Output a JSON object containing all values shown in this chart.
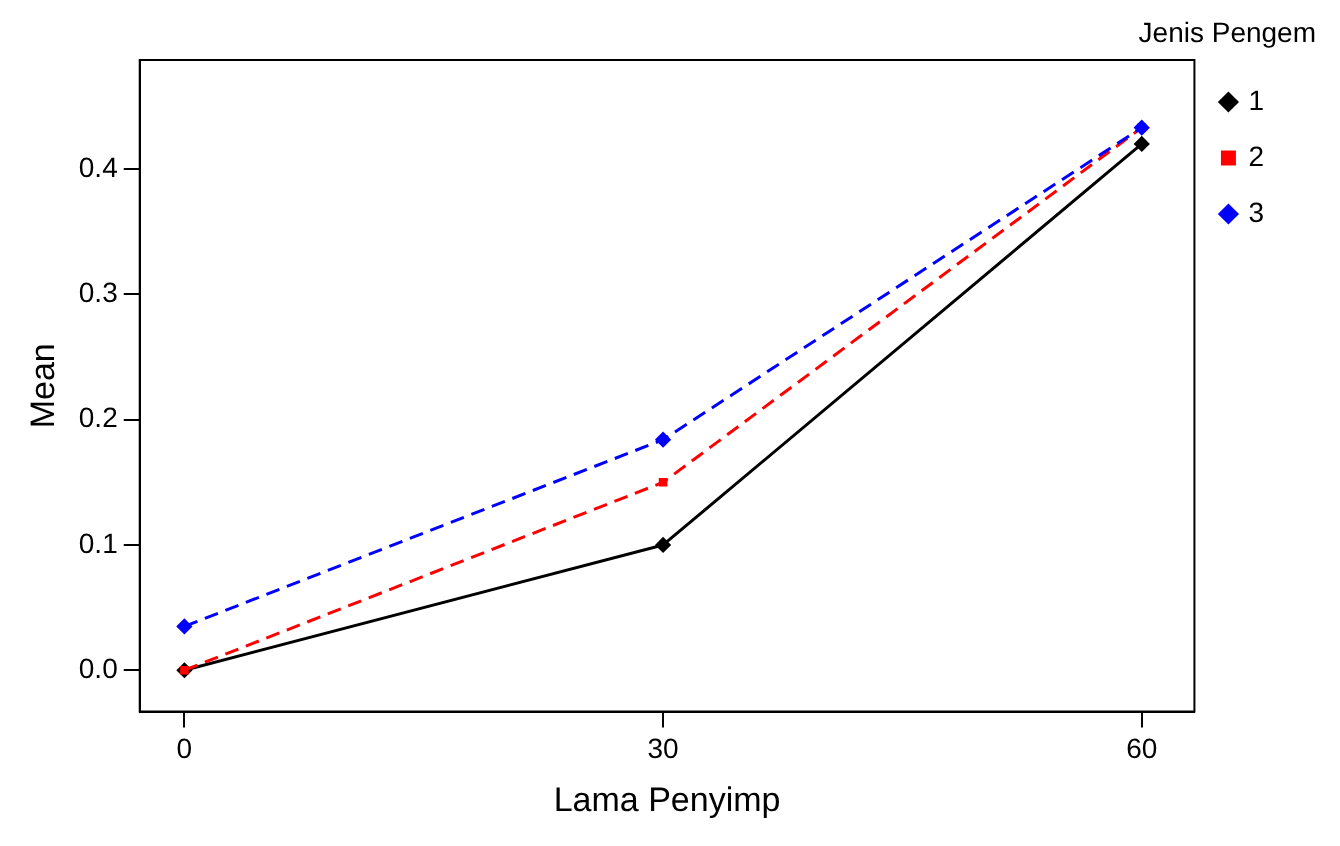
{
  "chart_data": {
    "type": "line",
    "xlabel": "Lama Penyimp",
    "ylabel": "Mean",
    "legend_title": "Jenis Pengem",
    "x": [
      0,
      30,
      60
    ],
    "series": [
      {
        "name": "1",
        "color": "#000000",
        "values": [
          0.0,
          0.1,
          0.42
        ],
        "marker": "diamond",
        "line_style": "solid"
      },
      {
        "name": "2",
        "color": "#ff0000",
        "values": [
          0.0,
          0.15,
          0.433
        ],
        "marker": "square",
        "line_style": "dashed"
      },
      {
        "name": "3",
        "color": "#0000ff",
        "values": [
          0.035,
          0.184,
          0.433
        ],
        "marker": "diamond",
        "line_style": "dashed"
      }
    ],
    "xlim": [
      -2.8,
      63.3
    ],
    "xticks": [
      0,
      30,
      60
    ],
    "ylim": [
      -0.033,
      0.487
    ],
    "yticks": [
      {
        "value": 0,
        "label": "0.0"
      },
      {
        "value": 0.1,
        "label": "0.1"
      },
      {
        "value": 0.2,
        "label": "0.2"
      },
      {
        "value": 0.3,
        "label": "0.3"
      },
      {
        "value": 0.4,
        "label": "0.4"
      }
    ],
    "grid": false,
    "legend": "top right"
  }
}
